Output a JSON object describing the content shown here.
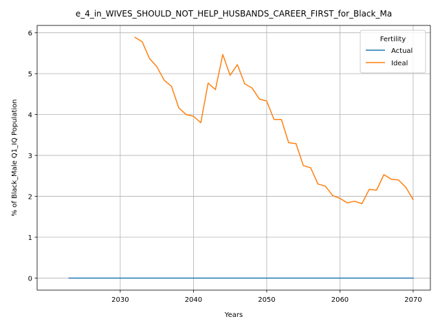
{
  "chart_data": {
    "type": "line",
    "title": "e_4_in_WIVES_SHOULD_NOT_HELP_HUSBANDS_CAREER_FIRST_for_Black_Ma",
    "xlabel": "Years",
    "ylabel": "% of Black_Male Q1_IQ Population",
    "xlim": [
      2018.65,
      2072.35
    ],
    "ylim": [
      -0.295,
      6.18
    ],
    "xticks": [
      2030,
      2040,
      2050,
      2060,
      2070
    ],
    "yticks": [
      0,
      1,
      2,
      3,
      4,
      5,
      6
    ],
    "grid": true,
    "legend": {
      "title": "Fertility",
      "placement": "top-right"
    },
    "series": [
      {
        "name": "Actual",
        "color": "#1f77b4",
        "x": [
          2023,
          2024,
          2025,
          2026,
          2027,
          2028,
          2029,
          2030,
          2031,
          2032,
          2033,
          2034,
          2035,
          2036,
          2037,
          2038,
          2039,
          2040,
          2041,
          2042,
          2043,
          2044,
          2045,
          2046,
          2047,
          2048,
          2049,
          2050,
          2051,
          2052,
          2053,
          2054,
          2055,
          2056,
          2057,
          2058,
          2059,
          2060,
          2061,
          2062,
          2063,
          2064,
          2065,
          2066,
          2067,
          2068,
          2069,
          2070
        ],
        "values": [
          0,
          0,
          0,
          0,
          0,
          0,
          0,
          0,
          0,
          0,
          0,
          0,
          0,
          0,
          0,
          0,
          0,
          0,
          0,
          0,
          0,
          0,
          0,
          0,
          0,
          0,
          0,
          0,
          0,
          0,
          0,
          0,
          0,
          0,
          0,
          0,
          0,
          0,
          0,
          0,
          0,
          0,
          0,
          0,
          0,
          0,
          0,
          0
        ]
      },
      {
        "name": "Ideal",
        "color": "#ff7f0e",
        "x": [
          2032,
          2033,
          2034,
          2035,
          2036,
          2037,
          2038,
          2039,
          2040,
          2041,
          2042,
          2043,
          2044,
          2045,
          2046,
          2047,
          2048,
          2049,
          2050,
          2051,
          2052,
          2053,
          2054,
          2055,
          2056,
          2057,
          2058,
          2059,
          2060,
          2061,
          2062,
          2063,
          2064,
          2065,
          2066,
          2067,
          2068,
          2069,
          2070
        ],
        "values": [
          5.89,
          5.78,
          5.37,
          5.17,
          4.84,
          4.69,
          4.16,
          4.0,
          3.96,
          3.8,
          4.77,
          4.61,
          5.47,
          4.96,
          5.22,
          4.75,
          4.65,
          4.38,
          4.33,
          3.88,
          3.88,
          3.31,
          3.29,
          2.75,
          2.7,
          2.3,
          2.25,
          2.02,
          1.95,
          1.84,
          1.88,
          1.82,
          2.17,
          2.15,
          2.53,
          2.42,
          2.4,
          2.22,
          1.92
        ]
      }
    ]
  }
}
